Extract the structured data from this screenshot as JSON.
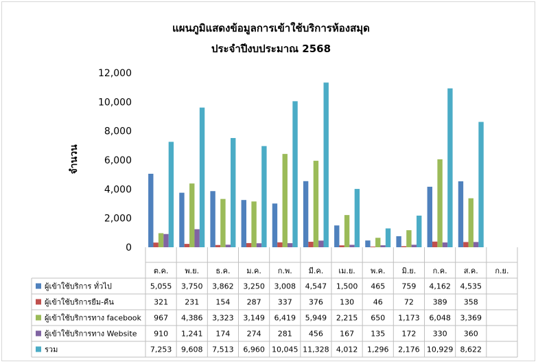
{
  "chart_data": {
    "type": "bar",
    "title": "แผนภูมิแสดงข้อมูลการเข้าใช้บริการห้องสมุด",
    "subtitle": "ประจำปีงบประมาณ 2568",
    "xlabel": "",
    "ylabel": "จำนวน",
    "ylim": [
      0,
      12000
    ],
    "yticks": [
      "0",
      "2,000",
      "4,000",
      "6,000",
      "8,000",
      "10,000",
      "12,000"
    ],
    "categories": [
      "ต.ค.",
      "พ.ย.",
      "ธ.ค.",
      "ม.ค.",
      "ก.พ.",
      "มี.ค.",
      "เม.ย.",
      "พ.ค.",
      "มิ.ย.",
      "ก.ค.",
      "ส.ค.",
      "ก.ย."
    ],
    "legend": "data-table",
    "grid": false,
    "series": [
      {
        "name": "ผู้เข้าใช้บริการ ทั่วไป",
        "color": "#4f81bd",
        "values": [
          5055,
          3750,
          3862,
          3250,
          3008,
          4547,
          1500,
          465,
          759,
          4162,
          4535,
          null
        ],
        "labels": [
          "5,055",
          "3,750",
          "3,862",
          "3,250",
          "3,008",
          "4,547",
          "1,500",
          "465",
          "759",
          "4,162",
          "4,535",
          ""
        ]
      },
      {
        "name": "ผู้เข้าใช้บริการยืม-คืน",
        "color": "#c0504d",
        "values": [
          321,
          231,
          154,
          287,
          337,
          376,
          130,
          46,
          72,
          389,
          358,
          null
        ],
        "labels": [
          "321",
          "231",
          "154",
          "287",
          "337",
          "376",
          "130",
          "46",
          "72",
          "389",
          "358",
          ""
        ]
      },
      {
        "name": "ผู้เข้าใช้บริการทาง facebook",
        "color": "#9bbb59",
        "values": [
          967,
          4386,
          3323,
          3149,
          6419,
          5949,
          2215,
          650,
          1173,
          6048,
          3369,
          null
        ],
        "labels": [
          "967",
          "4,386",
          "3,323",
          "3,149",
          "6,419",
          "5,949",
          "2,215",
          "650",
          "1,173",
          "6,048",
          "3,369",
          ""
        ]
      },
      {
        "name": "ผู้เข้าใช้บริการทาง Website",
        "color": "#8064a2",
        "values": [
          910,
          1241,
          174,
          274,
          281,
          456,
          167,
          135,
          172,
          330,
          360,
          null
        ],
        "labels": [
          "910",
          "1,241",
          "174",
          "274",
          "281",
          "456",
          "167",
          "135",
          "172",
          "330",
          "360",
          ""
        ]
      },
      {
        "name": "รวม",
        "color": "#4bacc6",
        "values": [
          7253,
          9608,
          7513,
          6960,
          10045,
          11328,
          4012,
          1296,
          2176,
          10929,
          8622,
          null
        ],
        "labels": [
          "7,253",
          "9,608",
          "7,513",
          "6,960",
          "10,045",
          "11,328",
          "4,012",
          "1,296",
          "2,176",
          "10,929",
          "8,622",
          ""
        ]
      }
    ]
  }
}
